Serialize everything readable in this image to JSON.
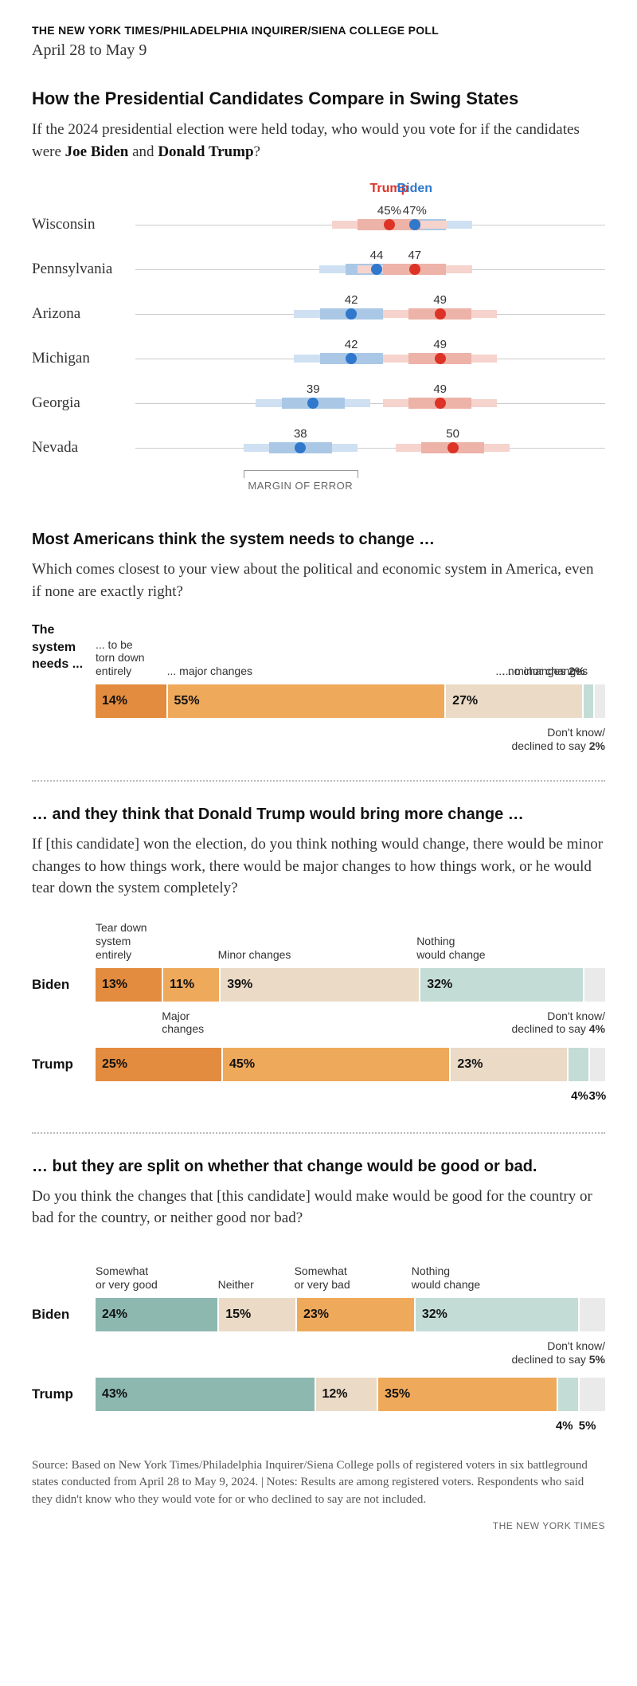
{
  "header": {
    "source": "THE NEW YORK TIMES/PHILADELPHIA INQUIRER/SIENA COLLEGE POLL",
    "dates": "April 28 to May 9"
  },
  "colors": {
    "trump": "#dd3327",
    "biden": "#2f78cc",
    "trump_band_light": "#f6d3cc",
    "trump_band_core": "#edb2a8",
    "biden_band_light": "#cfe0f2",
    "biden_band_core": "#aac8e6",
    "orange_dark": "#e38b3e",
    "orange_mid": "#efa95b",
    "tan": "#eadac6",
    "teal_light": "#c3dcd6",
    "teal_dark": "#8cb8b0",
    "grey_light": "#eaeaea",
    "text": "#121212"
  },
  "swing": {
    "title": "How the Presidential Candidates Compare in Swing States",
    "subtitle_plain1": "If the 2024 presidential election were held today, who would you vote for if the candidates were ",
    "subtitle_b1": "Joe Biden",
    "subtitle_mid": " and ",
    "subtitle_b2": "Donald Trump",
    "subtitle_end": "?",
    "legend_trump": "Trump",
    "legend_biden": "Biden",
    "domain_min": 25,
    "domain_max": 62,
    "moe": 4.5,
    "moe_label": "MARGIN OF ERROR",
    "pct_row_index": 0,
    "pct_suffix": "%",
    "rows": [
      {
        "state": "Wisconsin",
        "trump": 45,
        "biden": 47
      },
      {
        "state": "Pennsylvania",
        "trump": 47,
        "biden": 44
      },
      {
        "state": "Arizona",
        "trump": 49,
        "biden": 42
      },
      {
        "state": "Michigan",
        "trump": 49,
        "biden": 42
      },
      {
        "state": "Georgia",
        "trump": 49,
        "biden": 39
      },
      {
        "state": "Nevada",
        "trump": 50,
        "biden": 38
      }
    ]
  },
  "system": {
    "title": "Most Americans think the system needs to change …",
    "question": "Which comes closest to your view about the political and economic system in America, even if none are exactly right?",
    "lead1": "The",
    "lead2": "system",
    "lead3": "needs ...",
    "labels": {
      "torn": "... to be\ntorn down\nentirely",
      "major": "... major changes",
      "minor": "... minor changes",
      "none": "... no changes",
      "dk": "Don't know/\ndeclined to say"
    },
    "segments": [
      {
        "key": "torn",
        "value": 14,
        "text": "14%",
        "colorKey": "orange_dark"
      },
      {
        "key": "major",
        "value": 55,
        "text": "55%",
        "colorKey": "orange_mid"
      },
      {
        "key": "minor",
        "value": 27,
        "text": "27%",
        "colorKey": "tan"
      },
      {
        "key": "none",
        "value": 2,
        "text": "2%",
        "colorKey": "teal_light",
        "ext": true
      },
      {
        "key": "dk",
        "value": 2,
        "text": "2%",
        "colorKey": "grey_light",
        "ext": true
      }
    ]
  },
  "change": {
    "title": "… and they think that Donald Trump would bring more change …",
    "question": "If [this candidate] won the election, do you think nothing would change, there would be minor changes to how things work, there would be major changes to how things work, or he would tear down the system completely?",
    "col_labels": {
      "tear": "Tear down\nsystem\nentirely",
      "major": "Major\nchanges",
      "minor": "Minor changes",
      "nothing": "Nothing\nwould change",
      "dk": "Don't know/\ndeclined to say"
    },
    "rows": [
      {
        "name": "Biden",
        "segments": [
          {
            "key": "tear",
            "value": 13,
            "text": "13%",
            "colorKey": "orange_dark"
          },
          {
            "key": "major",
            "value": 11,
            "text": "11%",
            "colorKey": "orange_mid"
          },
          {
            "key": "minor",
            "value": 39,
            "text": "39%",
            "colorKey": "tan"
          },
          {
            "key": "nothing",
            "value": 32,
            "text": "32%",
            "colorKey": "teal_light"
          },
          {
            "key": "dk",
            "value": 4,
            "text": "4%",
            "colorKey": "grey_light",
            "ext": true
          }
        ]
      },
      {
        "name": "Trump",
        "segments": [
          {
            "key": "tear",
            "value": 25,
            "text": "25%",
            "colorKey": "orange_dark"
          },
          {
            "key": "major",
            "value": 45,
            "text": "45%",
            "colorKey": "orange_mid"
          },
          {
            "key": "minor",
            "value": 23,
            "text": "23%",
            "colorKey": "tan"
          },
          {
            "key": "nothing",
            "value": 4,
            "text": "4%",
            "colorKey": "teal_light",
            "ext": true
          },
          {
            "key": "dk",
            "value": 3,
            "text": "3%",
            "colorKey": "grey_light",
            "ext": true
          }
        ]
      }
    ]
  },
  "goodbad": {
    "title": "… but they are split on whether that change would be good or bad.",
    "question": "Do you think the changes that [this candidate] would make would be good for the country or bad for the country, or neither good nor bad?",
    "col_labels": {
      "good": "Somewhat\nor very good",
      "neither": "Neither",
      "bad": "Somewhat\nor very bad",
      "nothing": "Nothing\nwould change",
      "dk": "Don't know/\ndeclined to say"
    },
    "rows": [
      {
        "name": "Biden",
        "segments": [
          {
            "key": "good",
            "value": 24,
            "text": "24%",
            "colorKey": "teal_dark"
          },
          {
            "key": "neither",
            "value": 15,
            "text": "15%",
            "colorKey": "tan"
          },
          {
            "key": "bad",
            "value": 23,
            "text": "23%",
            "colorKey": "orange_mid"
          },
          {
            "key": "nothing",
            "value": 32,
            "text": "32%",
            "colorKey": "teal_light"
          },
          {
            "key": "dk",
            "value": 5,
            "text": "5%",
            "colorKey": "grey_light",
            "ext": true
          }
        ]
      },
      {
        "name": "Trump",
        "segments": [
          {
            "key": "good",
            "value": 43,
            "text": "43%",
            "colorKey": "teal_dark"
          },
          {
            "key": "neither",
            "value": 12,
            "text": "12%",
            "colorKey": "tan"
          },
          {
            "key": "bad",
            "value": 35,
            "text": "35%",
            "colorKey": "orange_mid"
          },
          {
            "key": "nothing",
            "value": 4,
            "text": "4%",
            "colorKey": "teal_light",
            "ext": true
          },
          {
            "key": "dk",
            "value": 5,
            "text": "5%",
            "colorKey": "grey_light",
            "ext": true
          }
        ]
      }
    ]
  },
  "footer": {
    "source": "Source: Based on New York Times/Philadelphia Inquirer/Siena College polls of registered voters in six battleground states conducted from April 28 to May 9, 2024. | Notes: Results are among registered voters. Respondents who said they didn't know who they would vote for or who declined to say are not included.",
    "credit": "THE NEW YORK TIMES"
  }
}
